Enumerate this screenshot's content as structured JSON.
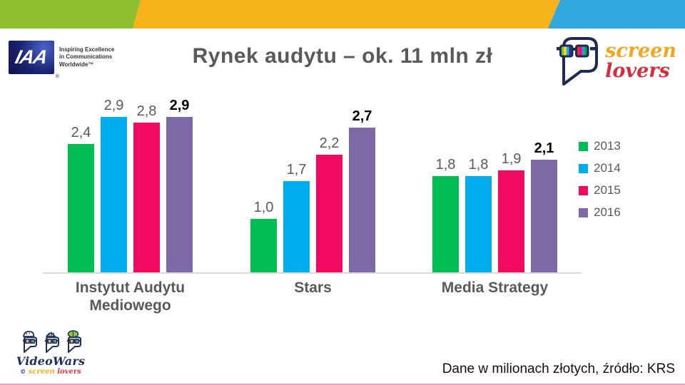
{
  "slide": {
    "title": "Rynek audytu – ok. 11 mln zł",
    "caption": "Dane w milionach złotych, źródło: KRS"
  },
  "theme": {
    "band_green": "#8CBE30",
    "band_yellow": "#F6B21B",
    "band_blue": "#33A8DF",
    "text_gray": "#595959",
    "axis_gray": "#D9D9D9"
  },
  "logos": {
    "iaa": {
      "mark": "IAA",
      "registered": "®",
      "tagline": [
        "Inspiring Excellence",
        "in Communications",
        "Worldwide™"
      ]
    },
    "screenlovers": {
      "word1": "screen",
      "word2": "lovers",
      "word1_color": "#F2A71E",
      "word2_color": "#D62E3F"
    },
    "videowars": {
      "name": "VideoWars",
      "sub_mark": "©",
      "sub_word1": "screen",
      "sub_word2": "lovers"
    }
  },
  "chart_data": {
    "type": "bar",
    "title": "Rynek audytu – ok. 11 mln zł",
    "unit": "mln zł",
    "categories": [
      "Instytut Audytu Mediowego",
      "Stars",
      "Media Strategy"
    ],
    "series": [
      {
        "name": "2013",
        "color": "#00BE53",
        "values": [
          2.4,
          1.0,
          1.8
        ]
      },
      {
        "name": "2014",
        "color": "#00AEEF",
        "values": [
          2.9,
          1.7,
          1.8
        ]
      },
      {
        "name": "2015",
        "color": "#F20A60",
        "values": [
          2.8,
          2.2,
          1.9
        ]
      },
      {
        "name": "2016",
        "color": "#7D69A5",
        "values": [
          2.9,
          2.7,
          2.1
        ],
        "emphasis": true
      }
    ],
    "value_labels": [
      [
        "2,4",
        "2,9",
        "2,8",
        "2,9"
      ],
      [
        "1,0",
        "1,7",
        "2,2",
        "2,7"
      ],
      [
        "1,8",
        "1,8",
        "1,9",
        "2,1"
      ]
    ],
    "legend_position": "right",
    "axis": {
      "baseline_shown": true,
      "y_ticks_shown": false,
      "ylim": [
        0,
        3.2
      ]
    }
  }
}
